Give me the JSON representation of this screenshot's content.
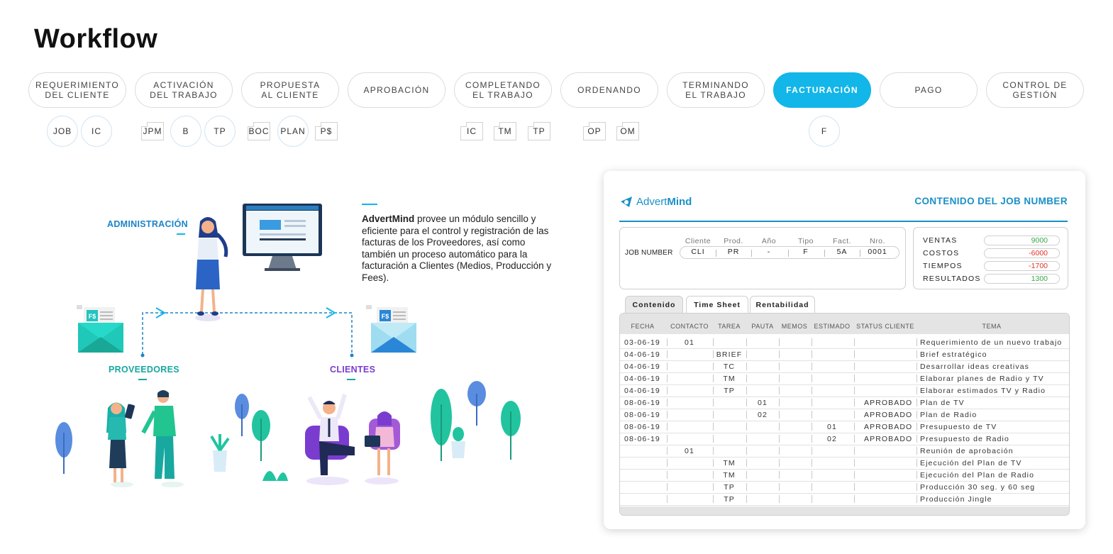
{
  "page": {
    "title": "Workflow"
  },
  "steps": [
    {
      "label": "REQUERIMIENTO\nDEL CLIENTE",
      "active": false
    },
    {
      "label": "ACTIVACIÓN\nDEL TRABAJO",
      "active": false
    },
    {
      "label": "PROPUESTA\nAL CLIENTE",
      "active": false
    },
    {
      "label": "APROBACIÓN",
      "active": false
    },
    {
      "label": "COMPLETANDO\nEL TRABAJO",
      "active": false
    },
    {
      "label": "ORDENANDO",
      "active": false
    },
    {
      "label": "TERMINANDO\nEL TRABAJO",
      "active": false
    },
    {
      "label": "FACTURACIÓN",
      "active": true
    },
    {
      "label": "PAGO",
      "active": false
    },
    {
      "label": "CONTROL DE\nGESTIÓN",
      "active": false
    }
  ],
  "chips": [
    {
      "label": "JOB",
      "shape": "circle"
    },
    {
      "label": "IC",
      "shape": "circle"
    },
    {
      "label": "JPM",
      "shape": "doc"
    },
    {
      "label": "B",
      "shape": "circle"
    },
    {
      "label": "TP",
      "shape": "circle"
    },
    {
      "label": "BOC",
      "shape": "doc"
    },
    {
      "label": "PLAN",
      "shape": "circle"
    },
    {
      "label": "P$",
      "shape": "doc"
    },
    {
      "label": "IC",
      "shape": "doc"
    },
    {
      "label": "TM",
      "shape": "doc"
    },
    {
      "label": "TP",
      "shape": "doc"
    },
    {
      "label": "OP",
      "shape": "doc"
    },
    {
      "label": "OM",
      "shape": "doc"
    },
    {
      "label": "F",
      "shape": "circle"
    }
  ],
  "illustration": {
    "admin_label": "ADMINISTRACIÓN",
    "providers_label": "PROVEEDORES",
    "clients_label": "CLIENTES",
    "invoice_badge": "F$",
    "description_brand": "AdvertMind",
    "description_text": " provee un módulo sencillo y eficiente para el control y registración de las facturas de los Proveedores, así como también un proceso automático para la facturación a Clientes (Medios, Producción y Fees).",
    "colors": {
      "admin": "#1a84c8",
      "providers": "#17a8a0",
      "clients": "#7a3ccf",
      "accent": "#12b6e8"
    }
  },
  "card": {
    "brand_light": "Advert",
    "brand_bold": "Mind",
    "header": "CONTENIDO DEL JOB NUMBER",
    "job_number": {
      "label": "JOB NUMBER",
      "fields": [
        {
          "name": "Cliente",
          "value": "CLI"
        },
        {
          "name": "Prod.",
          "value": "PR"
        },
        {
          "name": "Año",
          "value": "-"
        },
        {
          "name": "Tipo",
          "value": "F"
        },
        {
          "name": "Fact.",
          "value": "5A"
        },
        {
          "name": "Nro.",
          "value": "0001"
        }
      ]
    },
    "financials": [
      {
        "label": "VENTAS",
        "value": "9000",
        "color": "#3aa84a"
      },
      {
        "label": "COSTOS",
        "value": "-6000",
        "color": "#e0322a"
      },
      {
        "label": "TIEMPOS",
        "value": "-1700",
        "color": "#e0322a"
      },
      {
        "label": "RESULTADOS",
        "value": "1300",
        "color": "#3aa84a"
      }
    ],
    "tabs": [
      {
        "label": "Contenido",
        "active": true
      },
      {
        "label": "Time Sheet",
        "active": false
      },
      {
        "label": "Rentabilidad",
        "active": false
      }
    ],
    "columns": [
      "FECHA",
      "CONTACTO",
      "TAREA",
      "PAUTA",
      "MEMOS",
      "ESTIMADO",
      "STATUS CLIENTE",
      "TEMA"
    ],
    "rows": [
      {
        "fecha": "03-06-19",
        "contacto": "01",
        "tarea": "",
        "pauta": "",
        "memos": "",
        "estimado": "",
        "status": "",
        "tema": "Requerimiento de un nuevo trabajo"
      },
      {
        "fecha": "04-06-19",
        "contacto": "",
        "tarea": "BRIEF",
        "pauta": "",
        "memos": "",
        "estimado": "",
        "status": "",
        "tema": "Brief estratégico"
      },
      {
        "fecha": "04-06-19",
        "contacto": "",
        "tarea": "TC",
        "pauta": "",
        "memos": "",
        "estimado": "",
        "status": "",
        "tema": "Desarrollar ideas creativas"
      },
      {
        "fecha": "04-06-19",
        "contacto": "",
        "tarea": "TM",
        "pauta": "",
        "memos": "",
        "estimado": "",
        "status": "",
        "tema": "Elaborar planes de Radio y TV"
      },
      {
        "fecha": "04-06-19",
        "contacto": "",
        "tarea": "TP",
        "pauta": "",
        "memos": "",
        "estimado": "",
        "status": "",
        "tema": "Elaborar estimados TV y Radio"
      },
      {
        "fecha": "08-06-19",
        "contacto": "",
        "tarea": "",
        "pauta": "01",
        "memos": "",
        "estimado": "",
        "status": "APROBADO",
        "tema": "Plan de TV"
      },
      {
        "fecha": "08-06-19",
        "contacto": "",
        "tarea": "",
        "pauta": "02",
        "memos": "",
        "estimado": "",
        "status": "APROBADO",
        "tema": "Plan de Radio"
      },
      {
        "fecha": "08-06-19",
        "contacto": "",
        "tarea": "",
        "pauta": "",
        "memos": "",
        "estimado": "01",
        "status": "APROBADO",
        "tema": "Presupuesto de TV"
      },
      {
        "fecha": "08-06-19",
        "contacto": "",
        "tarea": "",
        "pauta": "",
        "memos": "",
        "estimado": "02",
        "status": "APROBADO",
        "tema": "Presupuesto de Radio"
      },
      {
        "fecha": "",
        "contacto": "01",
        "tarea": "",
        "pauta": "",
        "memos": "",
        "estimado": "",
        "status": "",
        "tema": "Reunión de aprobación"
      },
      {
        "fecha": "",
        "contacto": "",
        "tarea": "TM",
        "pauta": "",
        "memos": "",
        "estimado": "",
        "status": "",
        "tema": "Ejecución del Plan de TV"
      },
      {
        "fecha": "",
        "contacto": "",
        "tarea": "TM",
        "pauta": "",
        "memos": "",
        "estimado": "",
        "status": "",
        "tema": "Ejecución del Plan de Radio"
      },
      {
        "fecha": "",
        "contacto": "",
        "tarea": "TP",
        "pauta": "",
        "memos": "",
        "estimado": "",
        "status": "",
        "tema": "Producción 30 seg. y 60 seg"
      },
      {
        "fecha": "",
        "contacto": "",
        "tarea": "TP",
        "pauta": "",
        "memos": "",
        "estimado": "",
        "status": "",
        "tema": "Producción Jingle"
      }
    ]
  }
}
